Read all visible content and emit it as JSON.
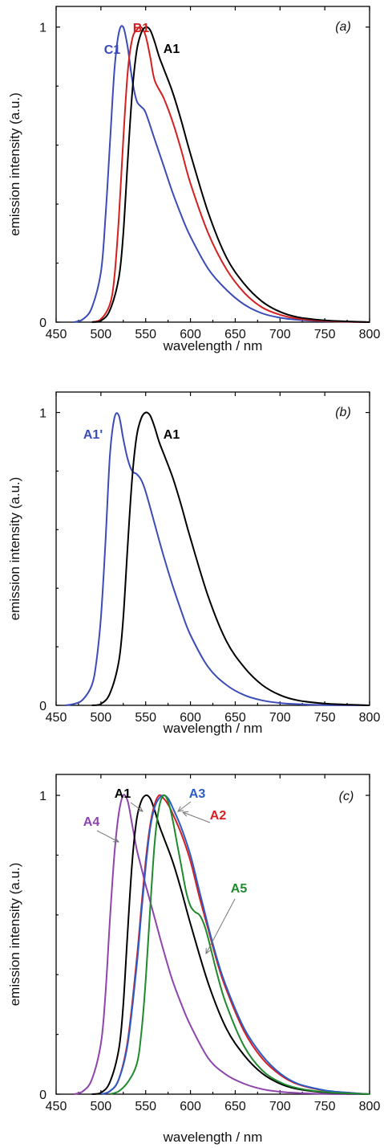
{
  "chart_data": [
    {
      "type": "line",
      "panel": "(a)",
      "xlabel": "wavelength / nm",
      "ylabel": "emission intensity (a.u.)",
      "xlim": [
        450,
        800
      ],
      "ylim": [
        0,
        1.07
      ],
      "xticks": [
        450,
        500,
        550,
        600,
        650,
        700,
        750,
        800
      ],
      "yticks": [
        0,
        1
      ],
      "grid": false,
      "series": [
        {
          "name": "C1",
          "color": "#3b4cb8",
          "x": [
            470,
            480,
            490,
            500,
            505,
            510,
            515,
            520,
            525,
            530,
            535,
            540,
            545,
            550,
            560,
            570,
            580,
            590,
            600,
            620,
            640,
            660,
            680,
            700,
            720,
            750,
            780,
            800
          ],
          "y": [
            0,
            0.01,
            0.05,
            0.17,
            0.35,
            0.6,
            0.85,
            0.98,
            1.0,
            0.93,
            0.82,
            0.75,
            0.73,
            0.71,
            0.62,
            0.53,
            0.44,
            0.36,
            0.29,
            0.18,
            0.11,
            0.06,
            0.03,
            0.015,
            0.008,
            0.003,
            0.001,
            0
          ]
        },
        {
          "name": "B1",
          "color": "#d42020",
          "x": [
            490,
            500,
            510,
            515,
            520,
            525,
            530,
            535,
            540,
            545,
            550,
            555,
            560,
            570,
            580,
            590,
            600,
            620,
            640,
            660,
            680,
            700,
            720,
            750,
            780,
            800
          ],
          "y": [
            0,
            0.01,
            0.06,
            0.15,
            0.35,
            0.62,
            0.85,
            0.96,
            0.99,
            1.0,
            0.97,
            0.9,
            0.82,
            0.76,
            0.68,
            0.58,
            0.47,
            0.3,
            0.18,
            0.1,
            0.05,
            0.025,
            0.012,
            0.004,
            0.001,
            0
          ]
        },
        {
          "name": "A1",
          "color": "#000000",
          "x": [
            490,
            500,
            510,
            520,
            525,
            530,
            535,
            540,
            545,
            550,
            555,
            560,
            565,
            570,
            580,
            590,
            600,
            620,
            640,
            660,
            680,
            700,
            720,
            750,
            780,
            800
          ],
          "y": [
            0,
            0.005,
            0.04,
            0.15,
            0.3,
            0.55,
            0.78,
            0.92,
            0.98,
            1.0,
            0.99,
            0.95,
            0.9,
            0.86,
            0.78,
            0.68,
            0.57,
            0.37,
            0.22,
            0.13,
            0.07,
            0.035,
            0.017,
            0.006,
            0.002,
            0
          ]
        }
      ],
      "annotations": [
        {
          "text": "C1",
          "color": "#3b4cb8"
        },
        {
          "text": "B1",
          "color": "#d42020"
        },
        {
          "text": "A1",
          "color": "#000000"
        }
      ]
    },
    {
      "type": "line",
      "panel": "(b)",
      "xlabel": "wavelength / nm",
      "ylabel": "emission intensity (a.u.)",
      "xlim": [
        450,
        800
      ],
      "ylim": [
        0,
        1.07
      ],
      "xticks": [
        450,
        500,
        550,
        600,
        650,
        700,
        750,
        800
      ],
      "yticks": [
        0,
        1
      ],
      "grid": false,
      "series": [
        {
          "name": "A1'",
          "color": "#3b4cb8",
          "x": [
            460,
            470,
            480,
            490,
            495,
            500,
            505,
            510,
            515,
            520,
            525,
            530,
            535,
            540,
            545,
            550,
            560,
            570,
            580,
            590,
            600,
            620,
            640,
            660,
            680,
            700,
            720,
            750,
            800
          ],
          "y": [
            0,
            0.005,
            0.02,
            0.07,
            0.15,
            0.3,
            0.55,
            0.85,
            0.98,
            0.99,
            0.91,
            0.84,
            0.8,
            0.79,
            0.77,
            0.73,
            0.62,
            0.51,
            0.41,
            0.32,
            0.24,
            0.13,
            0.07,
            0.035,
            0.017,
            0.008,
            0.004,
            0.001,
            0
          ]
        },
        {
          "name": "A1",
          "color": "#000000",
          "x": [
            490,
            500,
            510,
            520,
            525,
            530,
            535,
            540,
            545,
            550,
            555,
            560,
            565,
            570,
            580,
            590,
            600,
            620,
            640,
            660,
            680,
            700,
            720,
            750,
            780,
            800
          ],
          "y": [
            0,
            0.005,
            0.04,
            0.15,
            0.3,
            0.55,
            0.78,
            0.92,
            0.98,
            1.0,
            0.99,
            0.95,
            0.9,
            0.86,
            0.78,
            0.68,
            0.57,
            0.37,
            0.22,
            0.13,
            0.07,
            0.035,
            0.017,
            0.006,
            0.002,
            0
          ]
        }
      ],
      "annotations": [
        {
          "text": "A1'",
          "color": "#3b4cb8"
        },
        {
          "text": "A1",
          "color": "#000000"
        }
      ]
    },
    {
      "type": "line",
      "panel": "(c)",
      "xlabel": "wavelength / nm",
      "ylabel": "emission intensity (a.u.)",
      "xlim": [
        450,
        800
      ],
      "ylim": [
        0,
        1.07
      ],
      "xticks": [
        450,
        500,
        550,
        600,
        650,
        700,
        750,
        800
      ],
      "yticks": [
        0,
        1
      ],
      "grid": false,
      "series": [
        {
          "name": "A4",
          "color": "#8e44ad",
          "x": [
            470,
            480,
            490,
            500,
            505,
            510,
            515,
            520,
            525,
            530,
            535,
            540,
            545,
            550,
            560,
            570,
            580,
            590,
            600,
            620,
            640,
            660,
            680,
            700,
            720,
            750,
            800
          ],
          "y": [
            0,
            0.01,
            0.05,
            0.17,
            0.33,
            0.58,
            0.8,
            0.94,
            1.0,
            0.98,
            0.9,
            0.82,
            0.76,
            0.7,
            0.59,
            0.48,
            0.38,
            0.3,
            0.23,
            0.12,
            0.065,
            0.035,
            0.017,
            0.008,
            0.004,
            0.001,
            0
          ]
        },
        {
          "name": "A1",
          "color": "#000000",
          "x": [
            490,
            500,
            510,
            520,
            525,
            530,
            535,
            540,
            545,
            550,
            555,
            560,
            565,
            570,
            580,
            590,
            600,
            620,
            640,
            660,
            680,
            700,
            720,
            750,
            780,
            800
          ],
          "y": [
            0,
            0.005,
            0.04,
            0.15,
            0.3,
            0.55,
            0.78,
            0.92,
            0.98,
            1.0,
            0.99,
            0.95,
            0.9,
            0.86,
            0.78,
            0.68,
            0.57,
            0.37,
            0.22,
            0.13,
            0.07,
            0.035,
            0.017,
            0.006,
            0.002,
            0
          ]
        },
        {
          "name": "A2",
          "color": "#d42020",
          "x": [
            500,
            510,
            520,
            530,
            540,
            545,
            550,
            555,
            560,
            565,
            570,
            575,
            580,
            590,
            600,
            610,
            620,
            630,
            640,
            660,
            680,
            700,
            720,
            750,
            780,
            800
          ],
          "y": [
            0,
            0.01,
            0.05,
            0.18,
            0.45,
            0.62,
            0.78,
            0.9,
            0.97,
            1.0,
            0.99,
            0.97,
            0.94,
            0.87,
            0.78,
            0.66,
            0.55,
            0.44,
            0.35,
            0.21,
            0.12,
            0.065,
            0.033,
            0.012,
            0.004,
            0
          ]
        },
        {
          "name": "A3",
          "color": "#2b5cc8",
          "x": [
            500,
            510,
            520,
            530,
            540,
            545,
            550,
            555,
            560,
            565,
            570,
            575,
            580,
            590,
            600,
            610,
            620,
            630,
            640,
            660,
            680,
            700,
            720,
            750,
            780,
            800
          ],
          "y": [
            0,
            0.01,
            0.05,
            0.17,
            0.43,
            0.6,
            0.76,
            0.89,
            0.96,
            0.99,
            1.0,
            0.99,
            0.96,
            0.89,
            0.8,
            0.68,
            0.56,
            0.45,
            0.36,
            0.22,
            0.13,
            0.07,
            0.035,
            0.013,
            0.004,
            0
          ]
        },
        {
          "name": "A5",
          "color": "#1f8a2e",
          "x": [
            510,
            520,
            530,
            540,
            545,
            550,
            555,
            560,
            565,
            570,
            575,
            580,
            585,
            590,
            595,
            600,
            605,
            610,
            615,
            620,
            630,
            640,
            660,
            680,
            700,
            720,
            750,
            800
          ],
          "y": [
            0,
            0.01,
            0.04,
            0.1,
            0.2,
            0.38,
            0.62,
            0.84,
            0.96,
            1.0,
            0.98,
            0.92,
            0.84,
            0.76,
            0.68,
            0.63,
            0.61,
            0.6,
            0.57,
            0.52,
            0.4,
            0.3,
            0.16,
            0.08,
            0.04,
            0.02,
            0.007,
            0
          ]
        }
      ],
      "annotations": [
        {
          "text": "A1",
          "color": "#000000"
        },
        {
          "text": "A3",
          "color": "#2b5cc8"
        },
        {
          "text": "A2",
          "color": "#d42020"
        },
        {
          "text": "A4",
          "color": "#8e44ad"
        },
        {
          "text": "A5",
          "color": "#1f8a2e"
        }
      ]
    }
  ]
}
